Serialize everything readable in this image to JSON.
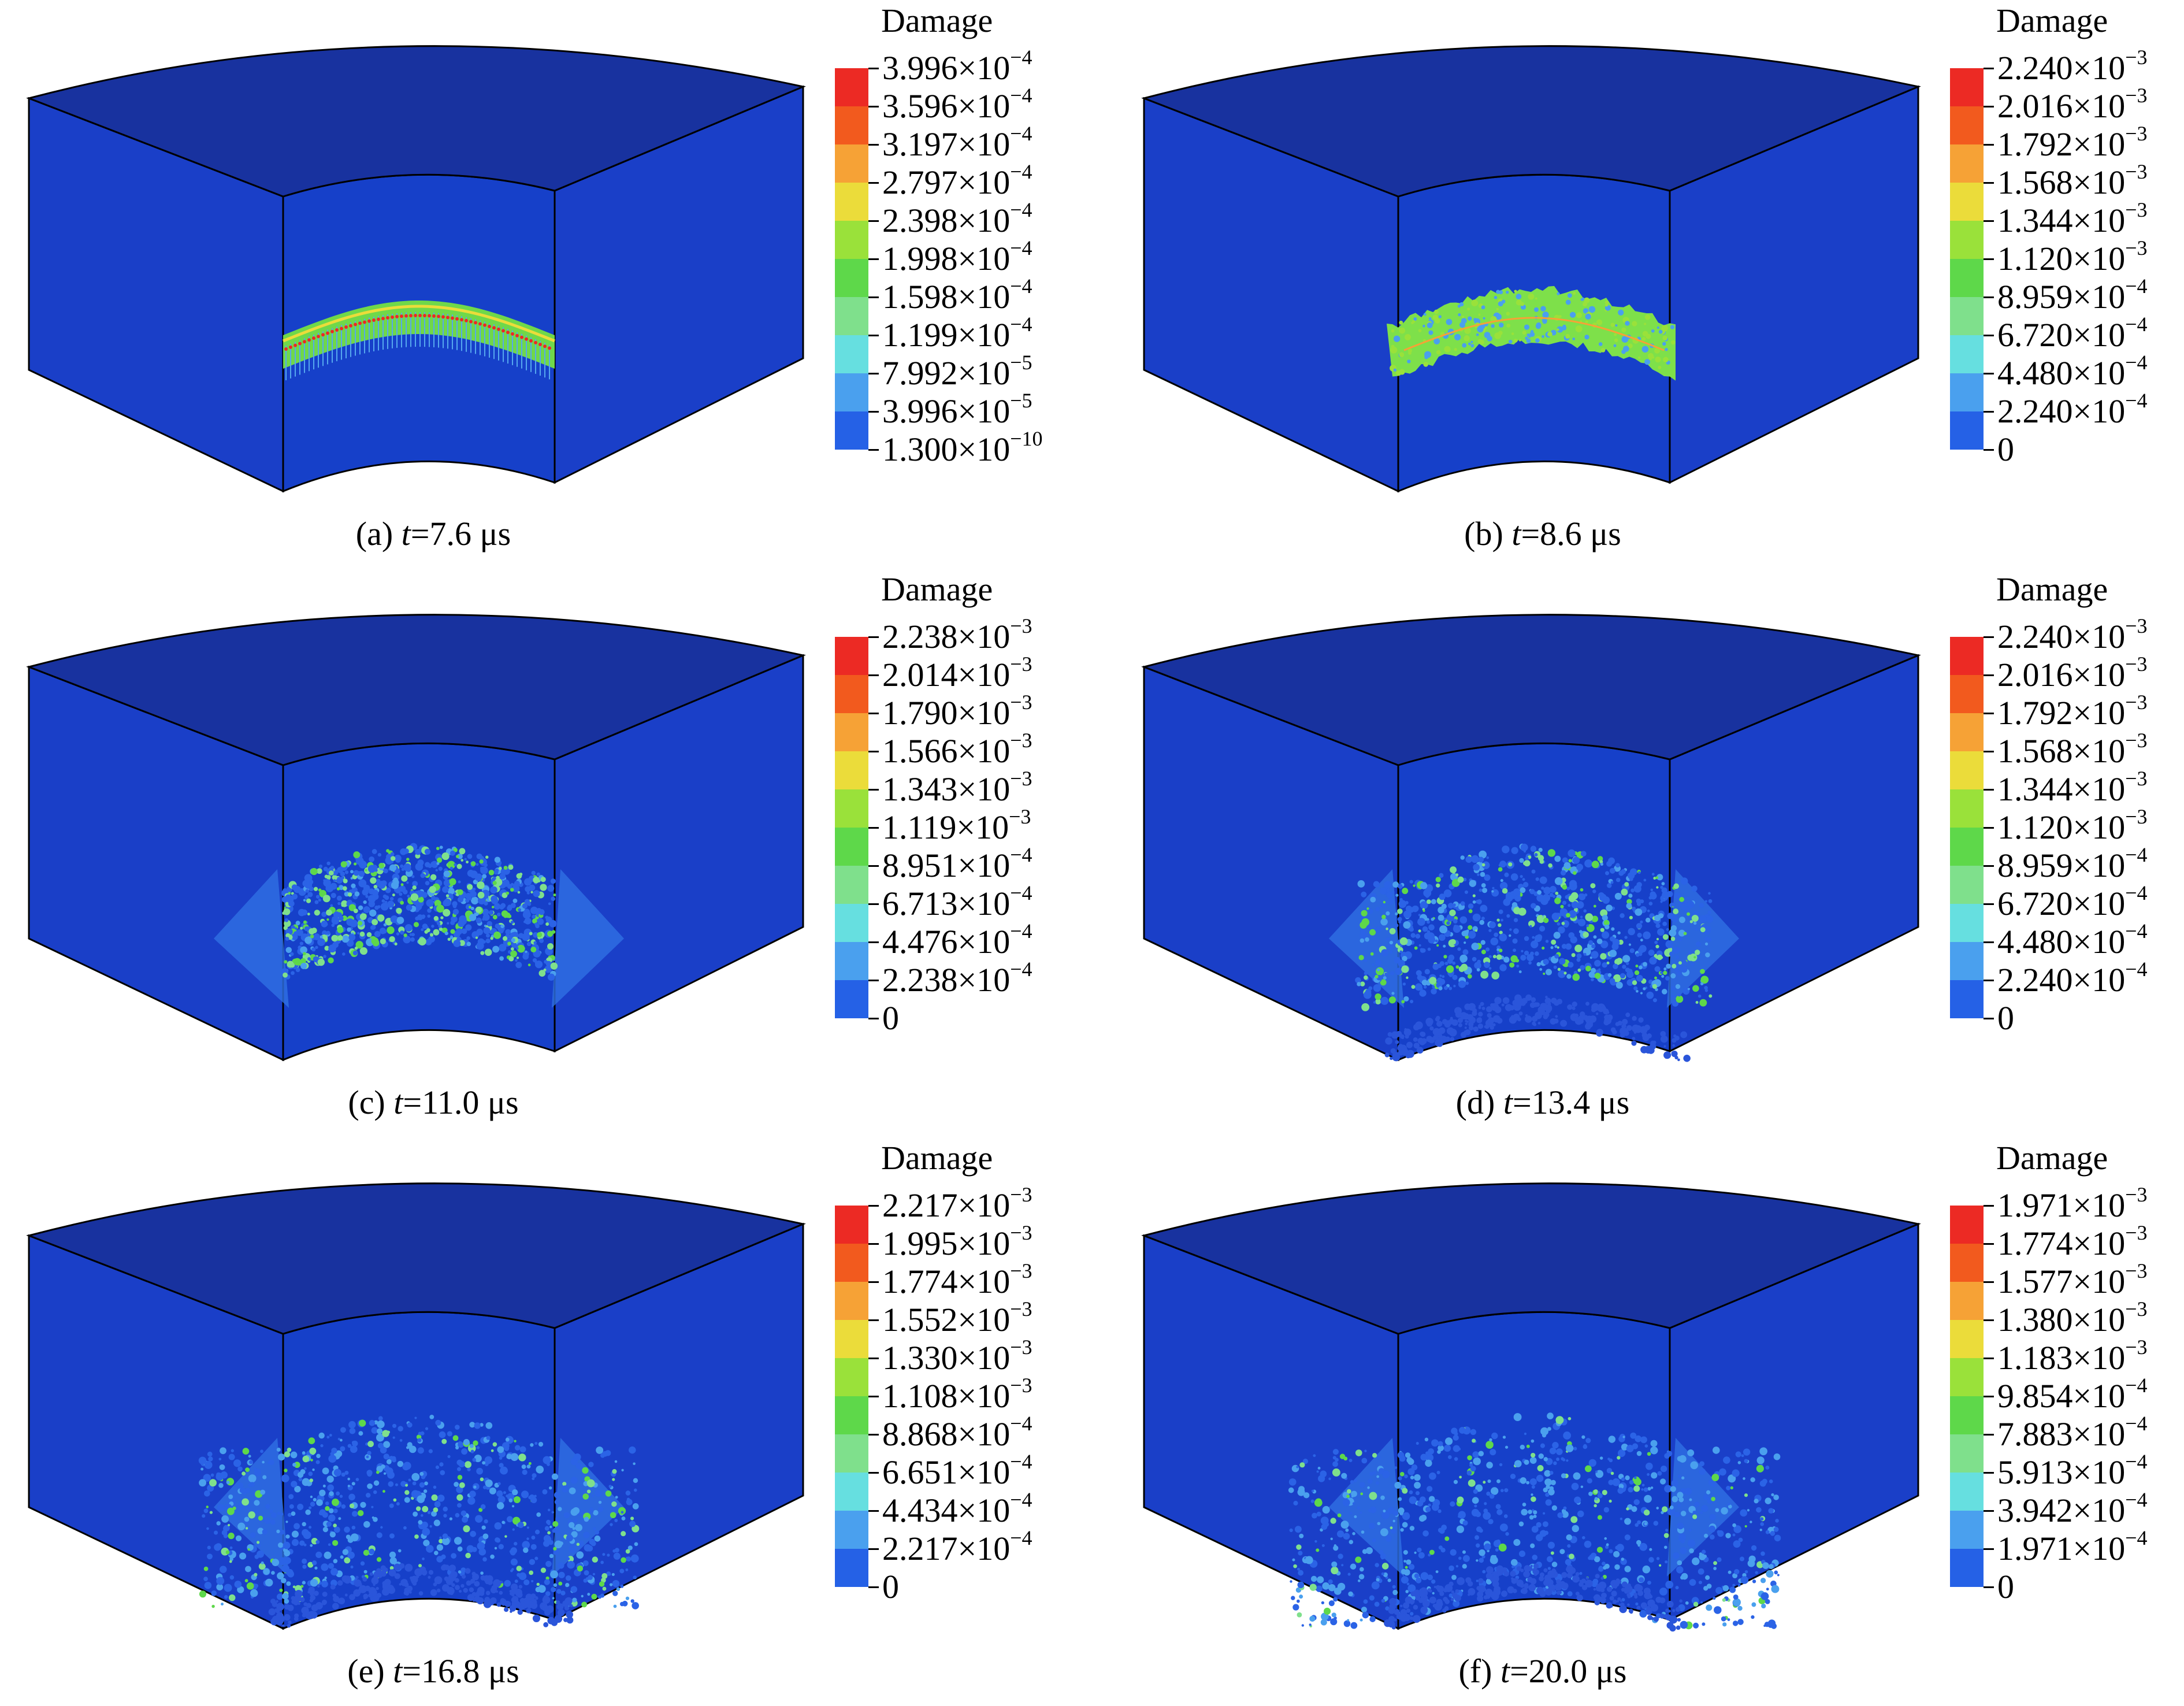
{
  "legend_title": "Damage",
  "colors": [
    "#0a2fd6",
    "#2561e6",
    "#4aa0ee",
    "#66dfe0",
    "#7fe08c",
    "#5ed84a",
    "#9ae13a",
    "#ebdc3a",
    "#f6a236",
    "#f25a1e",
    "#ec2a24"
  ],
  "panels": [
    {
      "id": "a",
      "caption": {
        "prefix": "(a) ",
        "var": "t",
        "rest": "=7.6 μs"
      },
      "ticks": [
        {
          "m": "3.996",
          "e": "−4"
        },
        {
          "m": "3.596",
          "e": "−4"
        },
        {
          "m": "3.197",
          "e": "−4"
        },
        {
          "m": "2.797",
          "e": "−4"
        },
        {
          "m": "2.398",
          "e": "−4"
        },
        {
          "m": "1.998",
          "e": "−4"
        },
        {
          "m": "1.598",
          "e": "−4"
        },
        {
          "m": "1.199",
          "e": "−4"
        },
        {
          "m": "7.992",
          "e": "−5"
        },
        {
          "m": "3.996",
          "e": "−5"
        },
        {
          "m": "1.300",
          "e": "−10"
        }
      ],
      "pattern": "thin-band"
    },
    {
      "id": "b",
      "caption": {
        "prefix": "(b) ",
        "var": "t",
        "rest": "=8.6 μs"
      },
      "ticks": [
        {
          "m": "2.240",
          "e": "−3"
        },
        {
          "m": "2.016",
          "e": "−3"
        },
        {
          "m": "1.792",
          "e": "−3"
        },
        {
          "m": "1.568",
          "e": "−3"
        },
        {
          "m": "1.344",
          "e": "−3"
        },
        {
          "m": "1.120",
          "e": "−3"
        },
        {
          "m": "8.959",
          "e": "−4"
        },
        {
          "m": "6.720",
          "e": "−4"
        },
        {
          "m": "4.480",
          "e": "−4"
        },
        {
          "m": "2.240",
          "e": "−4"
        },
        {
          "m": "0",
          "e": ""
        }
      ],
      "pattern": "wide-band"
    },
    {
      "id": "c",
      "caption": {
        "prefix": "(c) ",
        "var": "t",
        "rest": "=11.0 μs"
      },
      "ticks": [
        {
          "m": "2.238",
          "e": "−3"
        },
        {
          "m": "2.014",
          "e": "−3"
        },
        {
          "m": "1.790",
          "e": "−3"
        },
        {
          "m": "1.566",
          "e": "−3"
        },
        {
          "m": "1.343",
          "e": "−3"
        },
        {
          "m": "1.119",
          "e": "−3"
        },
        {
          "m": "8.951",
          "e": "−4"
        },
        {
          "m": "6.713",
          "e": "−4"
        },
        {
          "m": "4.476",
          "e": "−4"
        },
        {
          "m": "2.238",
          "e": "−4"
        },
        {
          "m": "0",
          "e": ""
        }
      ],
      "pattern": "spread"
    },
    {
      "id": "d",
      "caption": {
        "prefix": "(d) ",
        "var": "t",
        "rest": "=13.4 μs"
      },
      "ticks": [
        {
          "m": "2.240",
          "e": "−3"
        },
        {
          "m": "2.016",
          "e": "−3"
        },
        {
          "m": "1.792",
          "e": "−3"
        },
        {
          "m": "1.568",
          "e": "−3"
        },
        {
          "m": "1.344",
          "e": "−3"
        },
        {
          "m": "1.120",
          "e": "−3"
        },
        {
          "m": "8.959",
          "e": "−4"
        },
        {
          "m": "6.720",
          "e": "−4"
        },
        {
          "m": "4.480",
          "e": "−4"
        },
        {
          "m": "2.240",
          "e": "−4"
        },
        {
          "m": "0",
          "e": ""
        }
      ],
      "pattern": "diffuse"
    },
    {
      "id": "e",
      "caption": {
        "prefix": "(e) ",
        "var": "t",
        "rest": "=16.8 μs"
      },
      "ticks": [
        {
          "m": "2.217",
          "e": "−3"
        },
        {
          "m": "1.995",
          "e": "−3"
        },
        {
          "m": "1.774",
          "e": "−3"
        },
        {
          "m": "1.552",
          "e": "−3"
        },
        {
          "m": "1.330",
          "e": "−3"
        },
        {
          "m": "1.108",
          "e": "−3"
        },
        {
          "m": "8.868",
          "e": "−4"
        },
        {
          "m": "6.651",
          "e": "−4"
        },
        {
          "m": "4.434",
          "e": "−4"
        },
        {
          "m": "2.217",
          "e": "−4"
        },
        {
          "m": "0",
          "e": ""
        }
      ],
      "pattern": "scattered"
    },
    {
      "id": "f",
      "caption": {
        "prefix": "(f) ",
        "var": "t",
        "rest": "=20.0 μs"
      },
      "ticks": [
        {
          "m": "1.971",
          "e": "−3"
        },
        {
          "m": "1.774",
          "e": "−3"
        },
        {
          "m": "1.577",
          "e": "−3"
        },
        {
          "m": "1.380",
          "e": "−3"
        },
        {
          "m": "1.183",
          "e": "−3"
        },
        {
          "m": "9.854",
          "e": "−4"
        },
        {
          "m": "7.883",
          "e": "−4"
        },
        {
          "m": "5.913",
          "e": "−4"
        },
        {
          "m": "3.942",
          "e": "−4"
        },
        {
          "m": "1.971",
          "e": "−4"
        },
        {
          "m": "0",
          "e": ""
        }
      ],
      "pattern": "scattered-late"
    }
  ]
}
